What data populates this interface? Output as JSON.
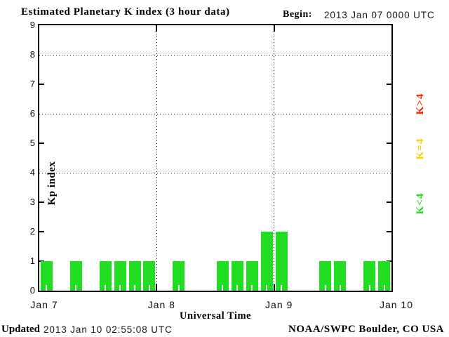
{
  "header": {
    "title": "Estimated Planetary K index (3 hour data)",
    "begin_label": "Begin:",
    "begin_value": "2013 Jan 07 0000 UTC"
  },
  "footer": {
    "updated_label": "Updated",
    "updated_value": "2013 Jan 10 02:55:08 UTC",
    "source": "NOAA/SWPC Boulder, CO USA"
  },
  "chart_data": {
    "type": "bar",
    "title": "Estimated Planetary K index (3 hour data)",
    "xlabel": "Universal Time",
    "ylabel": "Kp index",
    "begin": "2013 Jan 07 0000 UTC",
    "interval_hours": 3,
    "ylim": [
      0,
      9
    ],
    "yticks": [
      0,
      1,
      2,
      3,
      4,
      5,
      6,
      7,
      8,
      9
    ],
    "grid_y": [
      4,
      6,
      8
    ],
    "side_tick_y": [
      1,
      2,
      3,
      5,
      7
    ],
    "grid_style": "dotted",
    "day_labels": [
      "Jan 7",
      "Jan 8",
      "Jan 9",
      "Jan 10"
    ],
    "values": [
      1,
      0,
      1,
      0,
      1,
      1,
      1,
      1,
      0,
      1,
      0,
      0,
      1,
      1,
      1,
      2,
      2,
      0,
      0,
      1,
      1,
      0,
      1,
      1
    ],
    "bar_color": "#22dd22",
    "background_color": "#ffffff",
    "legend_position": "right",
    "legend": [
      {
        "label": "K>4",
        "color": "#ff2200"
      },
      {
        "label": "K=4",
        "color": "#ffcc00"
      },
      {
        "label": "K<4",
        "color": "#22dd22"
      }
    ]
  }
}
